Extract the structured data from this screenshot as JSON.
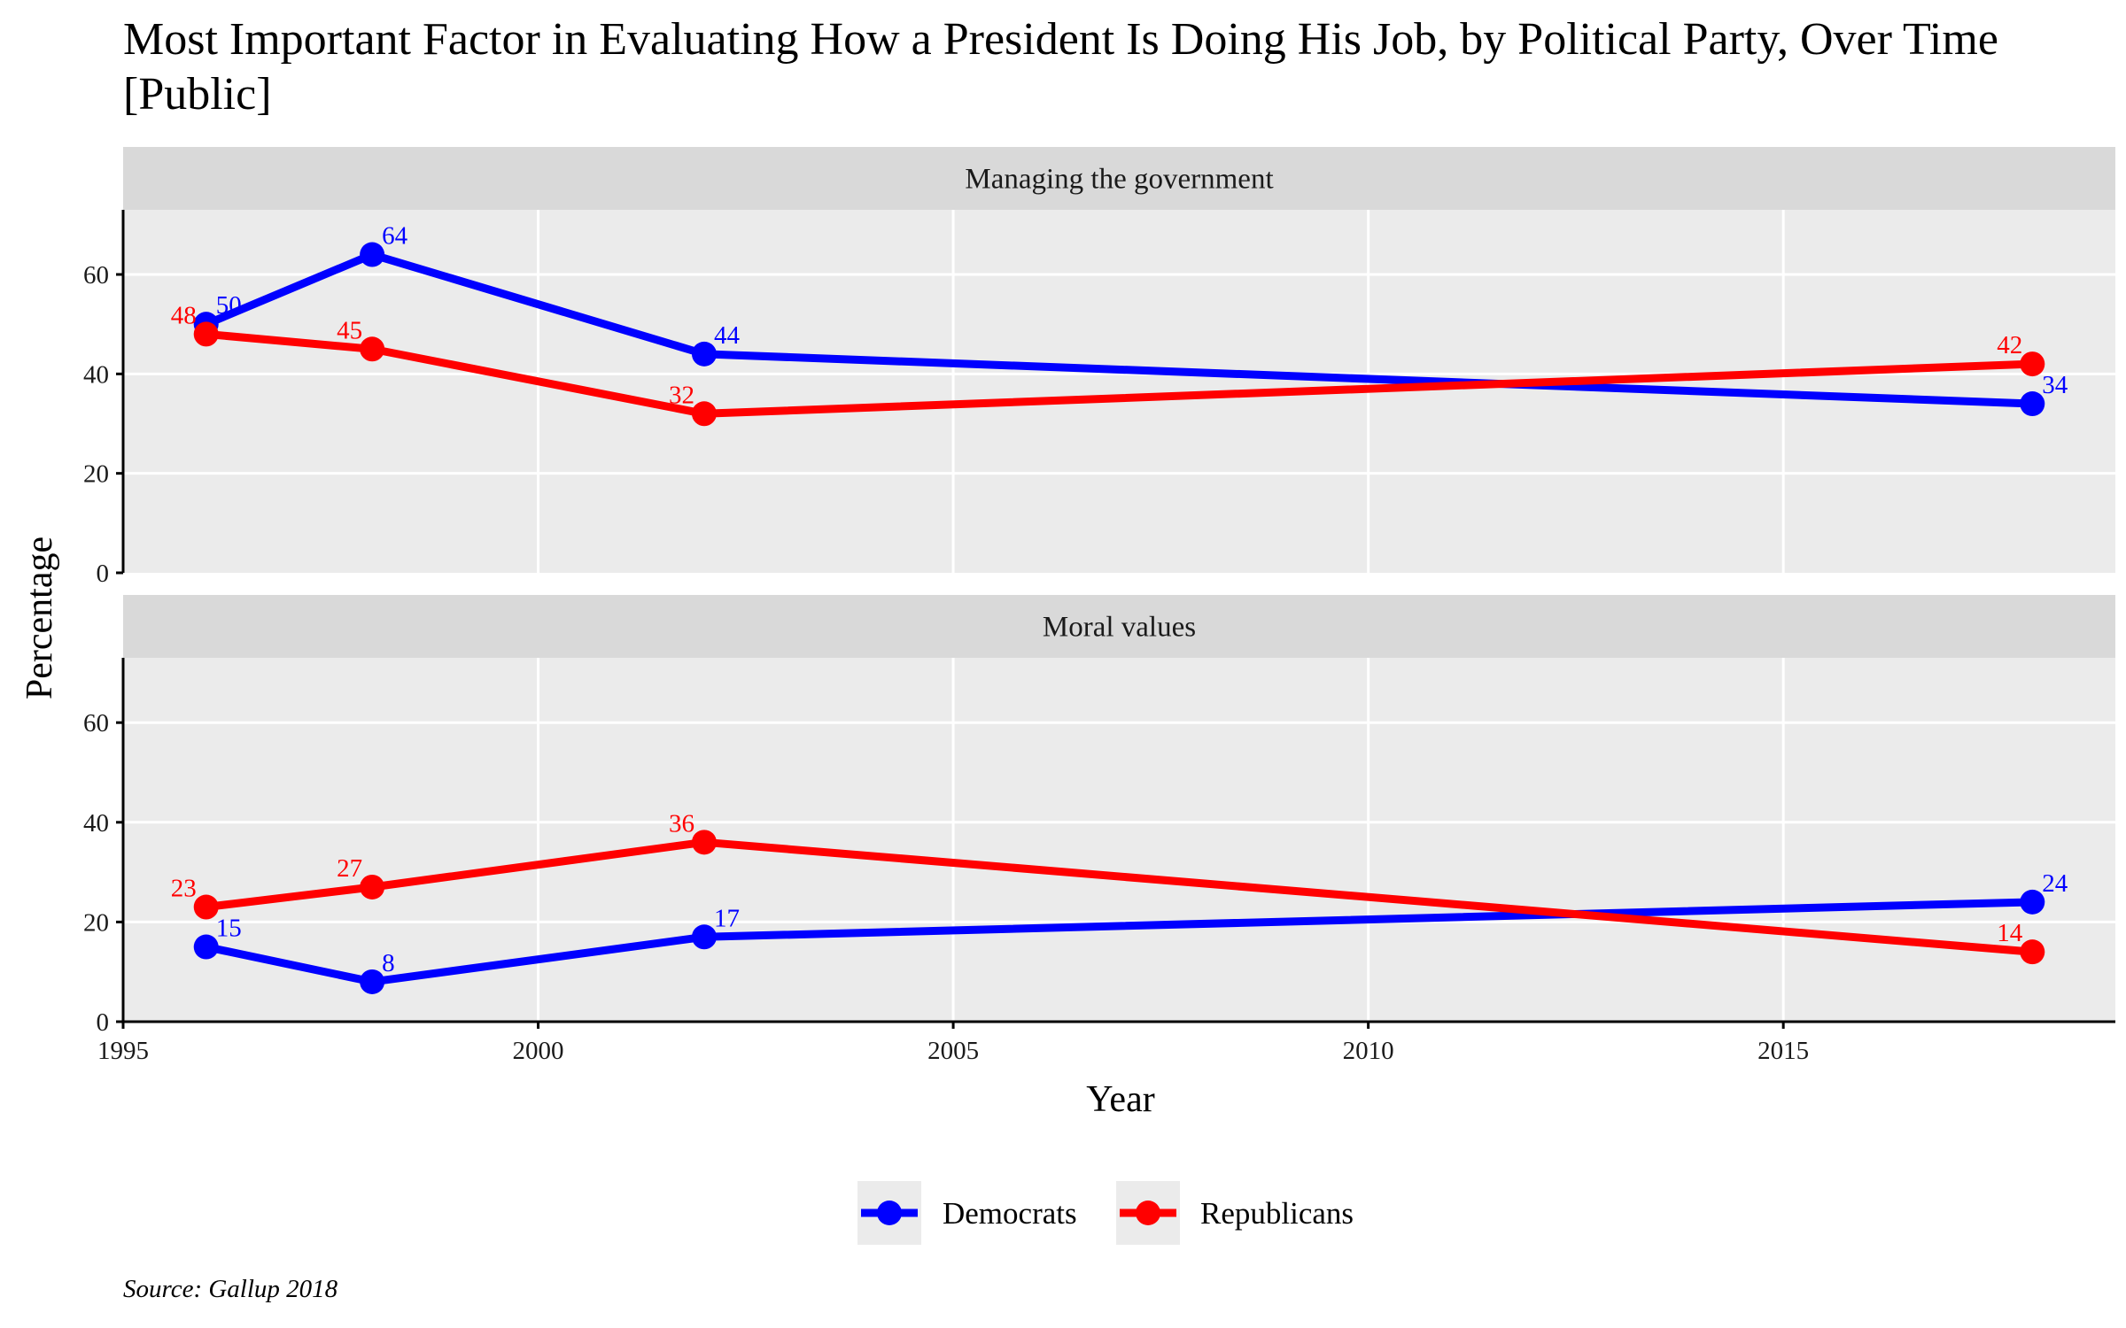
{
  "title": "Most Important Factor in Evaluating How a President Is Doing His Job, by Political Party, Over Time [Public]",
  "source": "Source: Gallup 2018",
  "colors": {
    "democrats": "#0000ff",
    "republicans": "#ff0000",
    "panel_bg": "#ebebeb",
    "strip_bg": "#d9d9d9",
    "grid": "#ffffff"
  },
  "chart_data": {
    "type": "line",
    "xlabel": "Year",
    "ylabel": "Percentage",
    "xlim": [
      1995,
      2019
    ],
    "ylim": [
      0,
      73
    ],
    "x_ticks": [
      1995,
      2000,
      2005,
      2010,
      2015
    ],
    "y_ticks": [
      0,
      20,
      40,
      60
    ],
    "grid": true,
    "legend_position": "bottom",
    "legend": [
      "Democrats",
      "Republicans"
    ],
    "panels": [
      {
        "label": "Managing the government",
        "series": [
          {
            "name": "Democrats",
            "color": "#0000ff",
            "x": [
              1996,
              1998,
              2002,
              2018
            ],
            "y": [
              50,
              64,
              44,
              34
            ]
          },
          {
            "name": "Republicans",
            "color": "#ff0000",
            "x": [
              1996,
              1998,
              2002,
              2018
            ],
            "y": [
              48,
              45,
              32,
              42
            ]
          }
        ]
      },
      {
        "label": "Moral values",
        "series": [
          {
            "name": "Democrats",
            "color": "#0000ff",
            "x": [
              1996,
              1998,
              2002,
              2018
            ],
            "y": [
              15,
              8,
              17,
              24
            ]
          },
          {
            "name": "Republicans",
            "color": "#ff0000",
            "x": [
              1996,
              1998,
              2002,
              2018
            ],
            "y": [
              23,
              27,
              36,
              14
            ]
          }
        ]
      }
    ]
  }
}
